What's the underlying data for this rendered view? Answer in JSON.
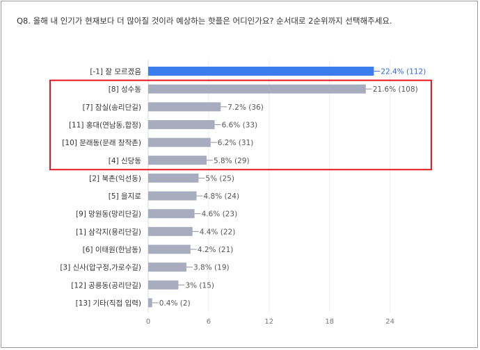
{
  "question": "Q8. 올해 내 인기가 현재보다 더 많아질 것이라 예상하는 핫플은 어디인가요? 순서대로 2순위까지 선택해주세요.",
  "colors": {
    "highlight_bar": "#3b7ded",
    "bar": "#a8acbf",
    "highlight_box": "#e8161b"
  },
  "chart_data": {
    "type": "bar",
    "orientation": "horizontal",
    "categories": [
      "[-1] 잘 모르겠음",
      "[8] 성수동",
      "[7] 잠실(송리단길)",
      "[11] 홍대(연남동,합정)",
      "[10] 문래동(문래 창작촌)",
      "[4] 신당동",
      "[2] 북촌(익선동)",
      "[5] 을지로",
      "[9] 망원동(망리단길)",
      "[1] 삼각지(용리단길)",
      "[6] 이태원(한남동)",
      "[3] 신사(압구정,가로수길)",
      "[12] 공릉동(공리단길)",
      "[13] 기타(직접 입력)"
    ],
    "values": [
      22.4,
      21.6,
      7.2,
      6.6,
      6.2,
      5.8,
      5,
      4.8,
      4.6,
      4.4,
      4.2,
      3.8,
      3,
      0.4
    ],
    "data_labels": [
      "22.4% (112)",
      "21.6% (108)",
      "7.2% (36)",
      "6.6% (33)",
      "6.2% (31)",
      "5.8% (29)",
      "5% (25)",
      "4.8% (24)",
      "4.6% (23)",
      "4.4% (22)",
      "4.2% (21)",
      "3.8% (19)",
      "3% (15)",
      "0.4% (2)"
    ],
    "xlim": [
      0,
      29
    ],
    "xticks": [
      0,
      6,
      12,
      18,
      24
    ],
    "highlighted_index": 0,
    "boxed_range": [
      1,
      5
    ],
    "grid": true,
    "xlabel": "",
    "ylabel": ""
  }
}
